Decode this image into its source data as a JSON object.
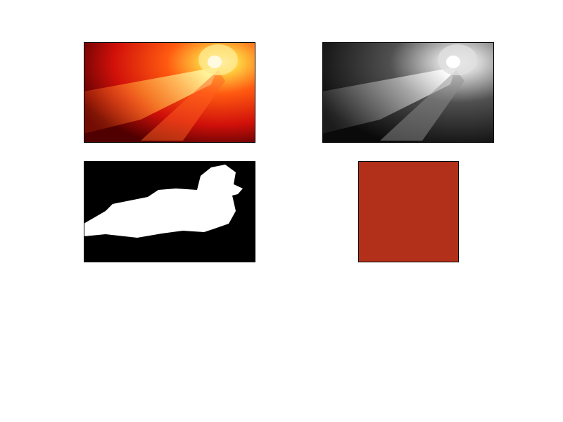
{
  "swatch_color": "#b22f1a"
}
